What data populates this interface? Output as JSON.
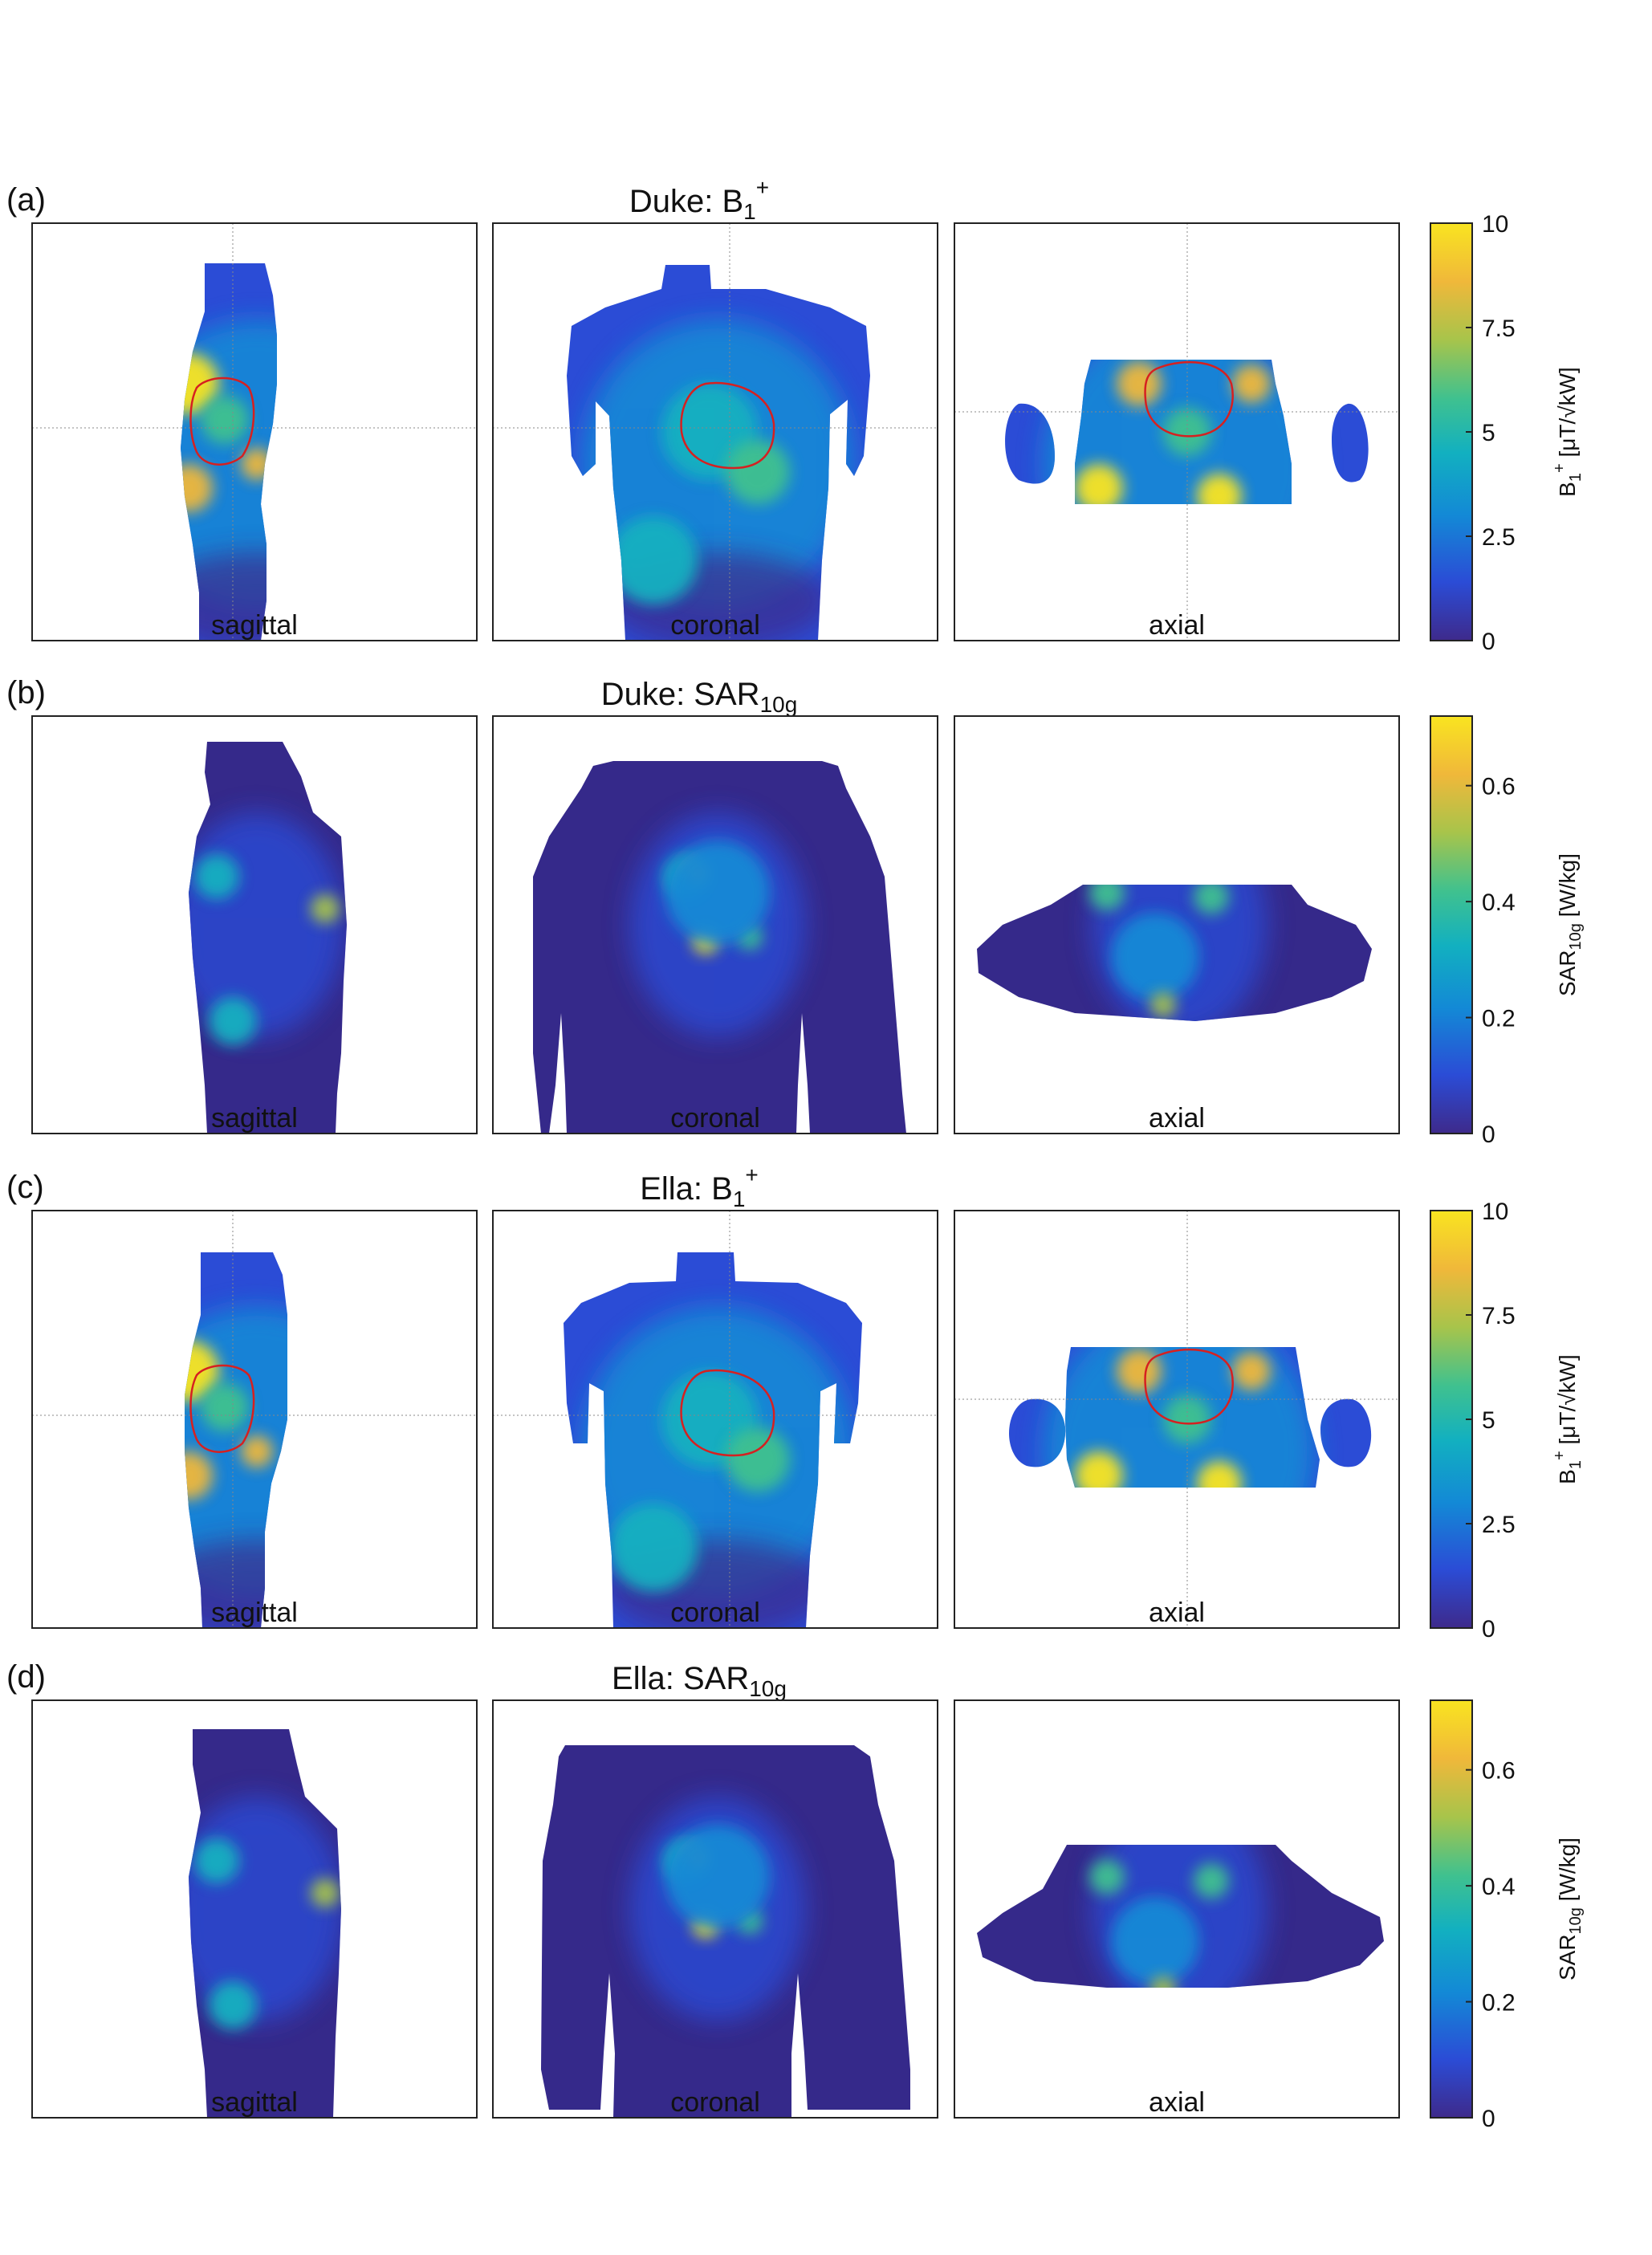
{
  "figure": {
    "rows": [
      {
        "label": "(a)",
        "title": {
          "main": "Duke: B",
          "sub": "1",
          "sup": "+"
        },
        "kind": "b1",
        "subject": "duke",
        "views": [
          "sagittal",
          "coronal",
          "axial"
        ],
        "colorbar": {
          "ticks": [
            "10",
            "7.5",
            "5",
            "2.5",
            "0"
          ],
          "label": {
            "pre": "B",
            "sub": "1",
            "sup": "+",
            "post": " [μT/√kW]"
          }
        }
      },
      {
        "label": "(b)",
        "title": {
          "main": "Duke: SAR",
          "sub": "10g",
          "sup": ""
        },
        "kind": "sar",
        "subject": "duke",
        "views": [
          "sagittal",
          "coronal",
          "axial"
        ],
        "colorbar": {
          "ticks": [
            "0.6",
            "0.4",
            "0.2",
            "0"
          ],
          "label": {
            "pre": "SAR",
            "sub": "10g",
            "sup": "",
            "post": " [W/kg]"
          }
        }
      },
      {
        "label": "(c)",
        "title": {
          "main": "Ella: B",
          "sub": "1",
          "sup": "+"
        },
        "kind": "b1",
        "subject": "ella",
        "views": [
          "sagittal",
          "coronal",
          "axial"
        ],
        "colorbar": {
          "ticks": [
            "10",
            "7.5",
            "5",
            "2.5",
            "0"
          ],
          "label": {
            "pre": "B",
            "sub": "1",
            "sup": "+",
            "post": " [μT/√kW]"
          }
        }
      },
      {
        "label": "(d)",
        "title": {
          "main": "Ella: SAR",
          "sub": "10g",
          "sup": ""
        },
        "kind": "sar",
        "subject": "ella",
        "views": [
          "sagittal",
          "coronal",
          "axial"
        ],
        "colorbar": {
          "ticks": [
            "0.6",
            "0.4",
            "0.2",
            "0"
          ],
          "label": {
            "pre": "SAR",
            "sub": "10g",
            "sup": "",
            "post": " [W/kg]"
          }
        }
      }
    ],
    "colormap": [
      "#3e2a8b",
      "#2b4cd6",
      "#1389d6",
      "#12b0c0",
      "#3fc18f",
      "#a7c44b",
      "#f0b83a",
      "#f9e420"
    ],
    "background_color": "#35298a",
    "contour_color": "#d62020"
  }
}
